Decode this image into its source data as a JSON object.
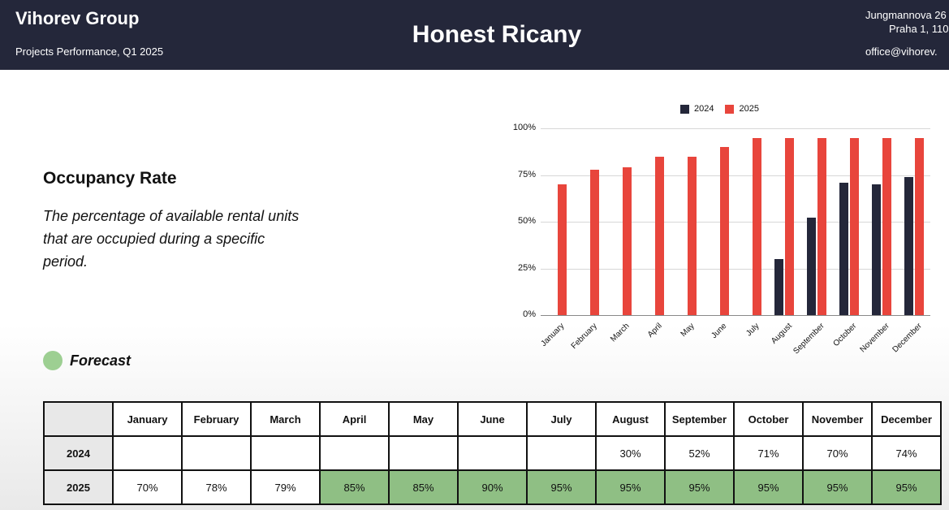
{
  "header": {
    "company": "Vihorev Group",
    "subtitle": "Projects Performance, Q1 2025",
    "title": "Honest Ricany",
    "address_line1": "Jungmannova 26",
    "address_line2": "Praha 1, 110",
    "email": "office@vihorev."
  },
  "metric": {
    "title": "Occupancy Rate",
    "description": "The percentage of available rental units that are occupied during a specific period."
  },
  "forecast": {
    "label": "Forecast",
    "color": "#9dcf92"
  },
  "colors": {
    "header_bg": "#24273a",
    "series_2024": "#24273a",
    "series_2025": "#e8453c",
    "forecast_cell": "#8fbf84"
  },
  "chart_data": {
    "type": "bar",
    "title": "",
    "xlabel": "",
    "ylabel": "",
    "categories": [
      "January",
      "February",
      "March",
      "April",
      "May",
      "June",
      "July",
      "August",
      "September",
      "October",
      "November",
      "December"
    ],
    "series": [
      {
        "name": "2024",
        "color": "#24273a",
        "values": [
          null,
          null,
          null,
          null,
          null,
          null,
          null,
          30,
          52,
          71,
          70,
          74
        ]
      },
      {
        "name": "2025",
        "color": "#e8453c",
        "values": [
          70,
          78,
          79,
          85,
          85,
          90,
          95,
          95,
          95,
          95,
          95,
          95
        ]
      }
    ],
    "yticks": [
      "0%",
      "25%",
      "50%",
      "75%",
      "100%"
    ],
    "ylim": [
      0,
      100
    ],
    "grid": true,
    "legend_position": "top"
  },
  "table": {
    "headers": [
      "",
      "January",
      "February",
      "March",
      "April",
      "May",
      "June",
      "July",
      "August",
      "September",
      "October",
      "November",
      "December"
    ],
    "rows": [
      {
        "label": "2024",
        "cells": [
          "",
          "",
          "",
          "",
          "",
          "",
          "",
          "30%",
          "52%",
          "71%",
          "70%",
          "74%"
        ],
        "forecast": [
          false,
          false,
          false,
          false,
          false,
          false,
          false,
          false,
          false,
          false,
          false,
          false
        ]
      },
      {
        "label": "2025",
        "cells": [
          "70%",
          "78%",
          "79%",
          "85%",
          "85%",
          "90%",
          "95%",
          "95%",
          "95%",
          "95%",
          "95%",
          "95%"
        ],
        "forecast": [
          false,
          false,
          false,
          true,
          true,
          true,
          true,
          true,
          true,
          true,
          true,
          true
        ]
      }
    ]
  }
}
